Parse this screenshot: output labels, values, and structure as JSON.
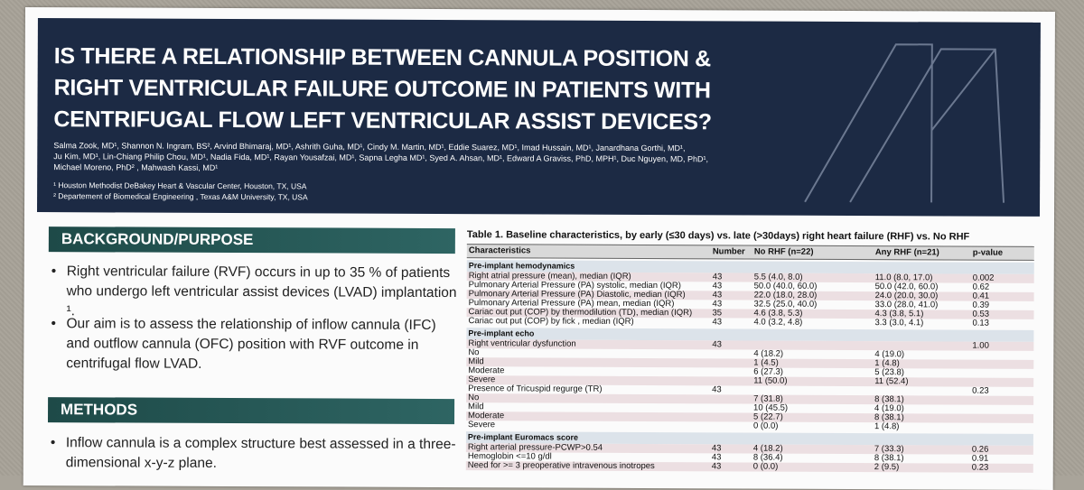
{
  "header": {
    "title_lines": [
      "IS THERE A RELATIONSHIP BETWEEN CANNULA POSITION &",
      "RIGHT VENTRICULAR FAILURE OUTCOME IN PATIENTS WITH",
      "CENTRIFUGAL FLOW LEFT VENTRICULAR ASSIST DEVICES?"
    ],
    "authors": [
      "Salma Zook, MD¹,  Shannon N. Ingram, BS², Arvind Bhimaraj, MD¹, Ashrith Guha, MD¹, Cindy M. Martin, MD¹, Eddie Suarez, MD¹, Imad Hussain, MD¹, Janardhana Gorthi, MD¹,",
      "Ju Kim, MD¹, Lin-Chiang Philip Chou, MD¹, Nadia Fida, MD¹, Rayan Yousafzai, MD¹, Sapna Legha MD¹, Syed A. Ahsan, MD¹,  Edward A Graviss, PhD, MPH¹, Duc Nguyen, MD, PhD¹,",
      "Michael Moreno, PhD² , Mahwash Kassi, MD¹"
    ],
    "affiliations": [
      "¹ Houston Methodist DeBakey Heart & Vascular Center, Houston, TX, USA",
      "² Departement of Biomedical Engineering , Texas A&M University, TX, USA"
    ]
  },
  "background": {
    "heading": "BACKGROUND/PURPOSE",
    "bullets": [
      "Right ventricular failure (RVF) occurs in up to 35 % of patients who undergo left ventricular assist devices (LVAD) implantation ¹.",
      "Our aim is to assess the relationship of inflow cannula (IFC) and outflow cannula (OFC) position with RVF outcome in centrifugal flow LVAD."
    ]
  },
  "methods": {
    "heading": "METHODS",
    "bullets": [
      "Inflow cannula is a complex structure best assessed in a three-dimensional  x-y-z plane."
    ]
  },
  "table": {
    "title": "Table 1. Baseline characteristics, by early (≤30 days) vs. late (>30days) right heart failure (RHF) vs. No RHF",
    "columns": [
      "Characteristics",
      "Number",
      "No RHF (n=22)",
      "Any RHF (n=21)",
      "p-value"
    ],
    "rows": [
      {
        "section": "Pre-implant hemodynamics"
      },
      {
        "label": "Right atrial pressure (mean), median (IQR)",
        "number": "43",
        "no_rhf": "5.5 (4.0, 8.0)",
        "any_rhf": "11.0 (8.0, 17.0)",
        "p": "0.002"
      },
      {
        "label": "Pulmonary Arterial Pressure (PA) systolic, median (IQR)",
        "number": "43",
        "no_rhf": "50.0 (40.0, 60.0)",
        "any_rhf": "50.0 (42.0, 60.0)",
        "p": "0.62"
      },
      {
        "label": "Pulmonary Arterial Pressure (PA) Diastolic, median (IQR)",
        "number": "43",
        "no_rhf": "22.0 (18.0, 28.0)",
        "any_rhf": "24.0 (20.0, 30.0)",
        "p": "0.41"
      },
      {
        "label": "Pulmonary Arterial Pressure (PA) mean, median (IQR)",
        "number": "43",
        "no_rhf": "32.5 (25.0, 40.0)",
        "any_rhf": "33.0 (28.0, 41.0)",
        "p": "0.39"
      },
      {
        "label": "Cariac out put (COP) by thermodilution (TD), median (IQR)",
        "number": "35",
        "no_rhf": "4.6 (3.8, 5.3)",
        "any_rhf": "4.3 (3.8, 5.1)",
        "p": "0.53"
      },
      {
        "label": "Cariac out put (COP) by fick , median (IQR)",
        "number": "43",
        "no_rhf": "4.0 (3.2, 4.8)",
        "any_rhf": "3.3 (3.0, 4.1)",
        "p": "0.13"
      },
      {
        "section": "Pre-implant echo"
      },
      {
        "label": "Right ventricular dysfunction",
        "number": "43",
        "p": "1.00"
      },
      {
        "label": "No",
        "no_rhf": "4 (18.2)",
        "any_rhf": "4 (19.0)"
      },
      {
        "label": "Mild",
        "no_rhf": "1 (4.5)",
        "any_rhf": "1 (4.8)"
      },
      {
        "label": "Moderate",
        "no_rhf": "6 (27.3)",
        "any_rhf": "5 (23.8)"
      },
      {
        "label": "Severe",
        "no_rhf": "11 (50.0)",
        "any_rhf": "11 (52.4)"
      },
      {
        "label": "Presence of Tricuspid regurge (TR)",
        "number": "43",
        "p": "0.23"
      },
      {
        "label": "No",
        "no_rhf": "7 (31.8)",
        "any_rhf": "8 (38.1)"
      },
      {
        "label": "Mild",
        "no_rhf": "10 (45.5)",
        "any_rhf": "4 (19.0)"
      },
      {
        "label": "Moderate",
        "no_rhf": "5 (22.7)",
        "any_rhf": "8 (38.1)"
      },
      {
        "label": "Severe",
        "no_rhf": "0 (0.0)",
        "any_rhf": "1 (4.8)"
      },
      {
        "section": "Pre-implant Euromacs score"
      },
      {
        "label": "Right arterial pressure-PCWP>0.54",
        "number": "43",
        "no_rhf": "4 (18.2)",
        "any_rhf": "7 (33.3)",
        "p": "0.26"
      },
      {
        "label": "Hemoglobin <=10 g/dl",
        "number": "43",
        "no_rhf": "8 (36.4)",
        "any_rhf": "8 (38.1)",
        "p": "0.91"
      },
      {
        "label": "Need for >= 3 preoperative intravenous inotropes",
        "number": "43",
        "no_rhf": "0 (0.0)",
        "any_rhf": "2 (9.5)",
        "p": "0.23"
      }
    ]
  }
}
